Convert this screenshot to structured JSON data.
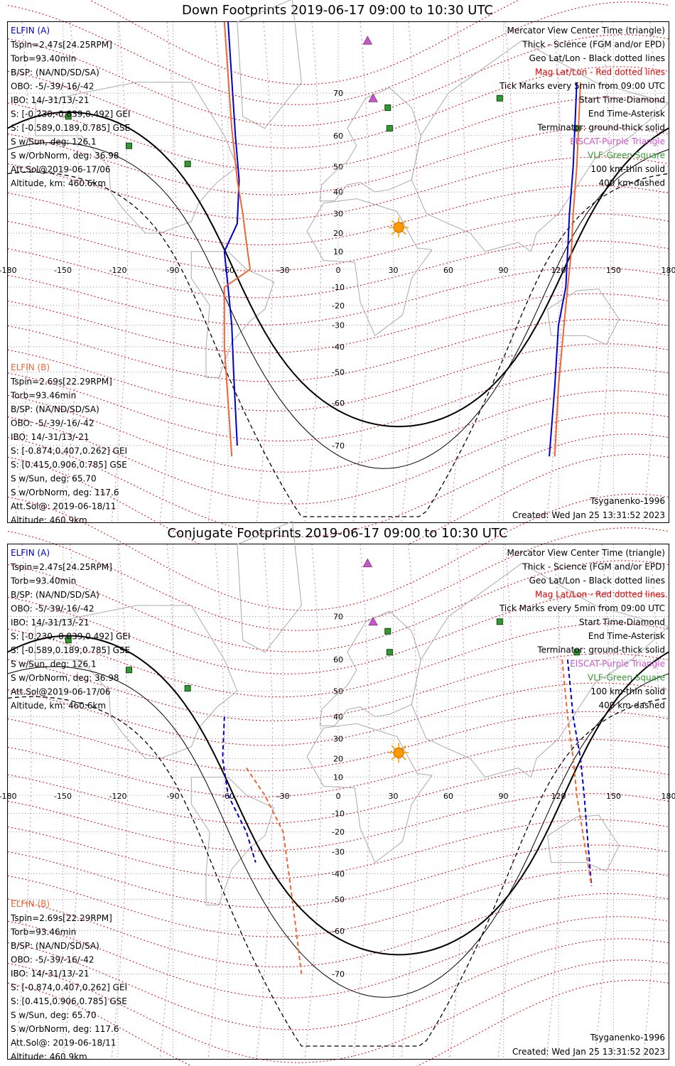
{
  "panels": [
    {
      "title": "Down Footprints 2019-06-17 09:00 to 10:30 UTC",
      "elfin_a": {
        "header": "ELFIN (A)",
        "lines": [
          "Tspin=2.47s[24.25RPM]",
          "Torb=93.40min",
          "B/SP: (NA/ND/SD/SA)",
          "OBO: -5/-39/-16/-42",
          "IBO: 14/-31/13/-21",
          "S: [-0.230,-0.839,0.492] GEI",
          "S: [-0.589,0.189,0.785] GSE",
          "S w/Sun, deg: 126.1",
          "S w/OrbNorm, deg: 36.98",
          "Att.Sol@2019-06-17/06",
          "Altitude, km: 460.6km"
        ]
      },
      "elfin_b": {
        "header": "ELFIN (B)",
        "lines": [
          "Tspin=2.69s[22.29RPM]",
          "Torb=93.46min",
          "B/SP: (NA/ND/SD/SA)",
          "OBO: -5/-39/-16/-42",
          "IBO: 14/-31/13/-21",
          "S: [-0.874,0.407,0.262] GEI",
          "S: [0.415,0.906,0.785] GSE",
          "S w/Sun, deg: 65.70",
          "S w/OrbNorm, deg: 117.6",
          "Att.Sol@: 2019-06-18/11",
          "Altitude: 460.9km"
        ]
      },
      "legend": [
        "Mercator View Center Time (triangle)",
        "Thick - Science (FGM and/or EPD)",
        "Geo Lat/Lon - Black dotted lines",
        "Mag Lat/Lon - Red dotted lines",
        "Tick Marks every 5min from 09:00 UTC",
        "Start Time-Diamond",
        "End Time-Asterisk",
        "Terminator: ground-thick solid",
        "EISCAT-Purple Triangle",
        "VLF-Green Square",
        "100 km-thin solid",
        "400 km-dashed"
      ],
      "model": "Tsyganenko-1996",
      "created": "Created: Wed Jan 25 13:31:52 2023"
    },
    {
      "title": "Conjugate Footprints 2019-06-17 09:00 to 10:30 UTC",
      "elfin_a": {
        "header": "ELFIN (A)",
        "lines": [
          "Tspin=2.47s[24.25RPM]",
          "Torb=93.40min",
          "B/SP: (NA/ND/SD/SA)",
          "OBO: -5/-39/-16/-42",
          "IBO: 14/-31/13/-21",
          "S: [-0.230,-0.839,0.492] GEI",
          "S: [-0.589,0.189,0.785] GSE",
          "S w/Sun, deg: 126.1",
          "S w/OrbNorm, deg: 36.98",
          "Att.Sol@2019-06-17/06",
          "Altitude, km: 460.6km"
        ]
      },
      "elfin_b": {
        "header": "ELFIN (B)",
        "lines": [
          "Tspin=2.69s[22.29RPM]",
          "Torb=93.46min",
          "B/SP: (NA/ND/SD/SA)",
          "OBO: -5/-39/-16/-42",
          "IBO: 14/-31/13/-21",
          "S: [-0.874,0.407,0.262] GEI",
          "S: [0.415,0.906,0.785] GSE",
          "S w/Sun, deg: 65.70",
          "S w/OrbNorm, deg: 117.6",
          "Att.Sol@: 2019-06-18/11",
          "Altitude: 460.9km"
        ]
      },
      "legend": [
        "Mercator View Center Time (triangle)",
        "Thick - Science (FGM and/or EPD)",
        "Geo Lat/Lon - Black dotted lines",
        "Mag Lat/Lon - Red dotted lines",
        "Tick Marks every 5min from 09:00 UTC",
        "Start Time-Diamond",
        "End Time-Asterisk",
        "Terminator: ground-thick solid",
        "EISCAT-Purple Triangle",
        "VLF-Green Square",
        "100 km-thin solid",
        "400 km-dashed"
      ],
      "model": "Tsyganenko-1996",
      "created": "Created: Wed Jan 25 13:31:52 2023"
    }
  ],
  "map": {
    "lon_ticks": [
      "-180",
      "-150",
      "-120",
      "-90",
      "-60",
      "-30",
      "0",
      "30",
      "60",
      "90",
      "120",
      "150",
      "180"
    ],
    "lat_ticks": [
      "70",
      "60",
      "50",
      "40",
      "30",
      "20",
      "10",
      "-10",
      "-20",
      "-30",
      "-40",
      "-50",
      "-60",
      "-70"
    ],
    "sun_position": {
      "lon": 33,
      "lat": 23
    },
    "eiscat_sites": [
      {
        "lon": 16,
        "lat": 78
      },
      {
        "lon": 19,
        "lat": 69
      }
    ],
    "vlf_sites": [
      {
        "lon": -147,
        "lat": 65
      },
      {
        "lon": -114,
        "lat": 57
      },
      {
        "lon": -82,
        "lat": 51
      },
      {
        "lon": 27,
        "lat": 67
      },
      {
        "lon": 28,
        "lat": 62
      },
      {
        "lon": 88,
        "lat": 69
      },
      {
        "lon": 130,
        "lat": 62
      }
    ]
  },
  "colors": {
    "elfin_a": "#0000cc",
    "elfin_b": "#ee6633",
    "mag_grid": "#dd0000",
    "eiscat": "#cc55cc",
    "vlf": "#339933",
    "sun": "#ff9900",
    "coast": "#aaaaaa",
    "geo_grid": "#555555"
  }
}
